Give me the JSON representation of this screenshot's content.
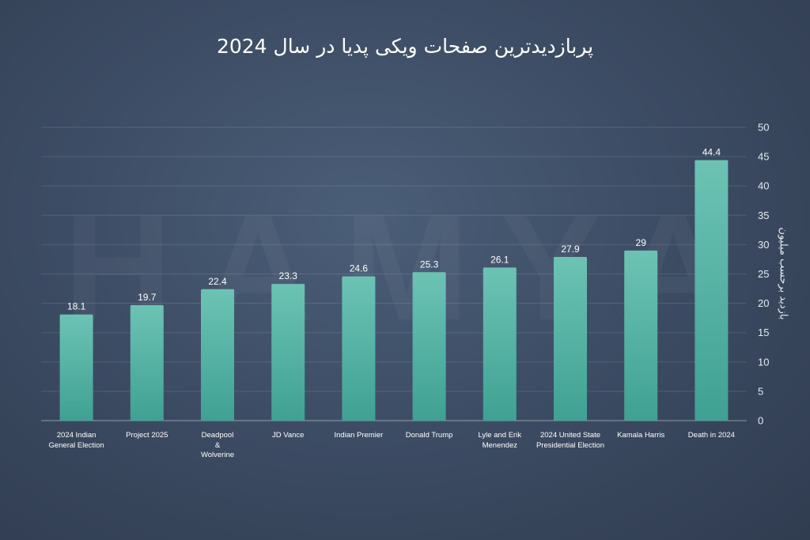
{
  "title": "پربازدیدترین صفحات ویکی پدیا در سال 2024",
  "watermark": "HAMYA",
  "chart_data": {
    "type": "bar",
    "title": "پربازدیدترین صفحات ویکی پدیا در سال 2024",
    "ylabel": "بازدید برحسب میلیون",
    "xlabel": "",
    "ylim": [
      0,
      50
    ],
    "yticks": [
      0,
      5,
      10,
      15,
      20,
      25,
      30,
      35,
      40,
      45,
      50
    ],
    "grid": true,
    "y_axis_side": "right",
    "bar_color": "#5cb8aa",
    "categories": [
      [
        "2024 Indian",
        "General Election"
      ],
      [
        "Project 2025"
      ],
      [
        "Deadpool",
        "&",
        "Wolverine"
      ],
      [
        "JD Vance"
      ],
      [
        "Indian Premier"
      ],
      [
        "Donald Trump"
      ],
      [
        "Lyle and Erik",
        "Menendez"
      ],
      [
        "2024 United State",
        "Presidential Election"
      ],
      [
        "Kamala Harris"
      ],
      [
        "Death in 2024"
      ]
    ],
    "values": [
      18.1,
      19.7,
      22.4,
      23.3,
      24.6,
      25.3,
      26.1,
      27.9,
      29,
      44.4
    ],
    "value_labels": [
      "18.1",
      "19.7",
      "22.4",
      "23.3",
      "24.6",
      "25.3",
      "26.1",
      "27.9",
      "29",
      "44.4"
    ]
  }
}
